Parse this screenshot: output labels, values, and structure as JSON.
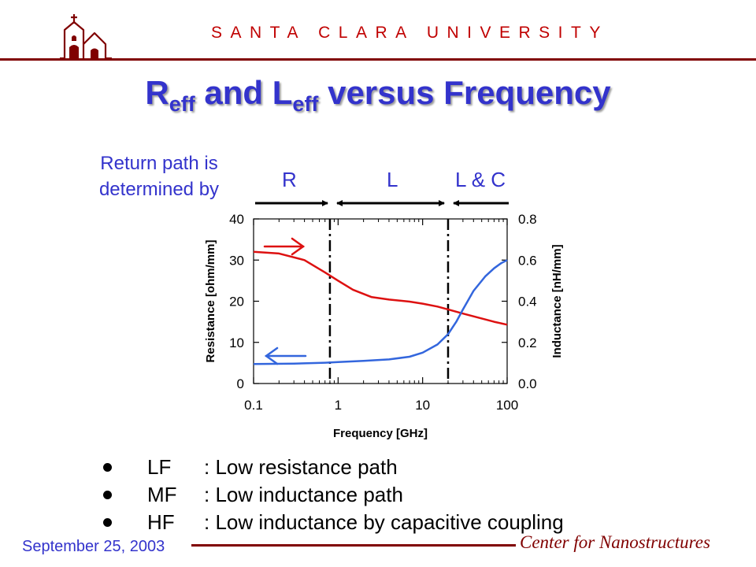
{
  "header": {
    "university": "SANTA CLARA UNIVERSITY"
  },
  "title": {
    "r": "R",
    "r_sub": "eff",
    "mid": " and L",
    "l_sub": "eff",
    "rest": " versus Frequency"
  },
  "annotation": {
    "line1": "Return path is",
    "line2": "determined by"
  },
  "regions": {
    "r": "R",
    "l": "L",
    "lc": "L & C"
  },
  "chart_data": {
    "type": "line",
    "x_scale": "log",
    "xlim": [
      0.1,
      100
    ],
    "xticks": [
      "0.1",
      "1",
      "10",
      "100"
    ],
    "xlabel": "Frequency [GHz]",
    "y_left": {
      "label": "Resistance [ohm/mm]",
      "lim": [
        0,
        40
      ],
      "ticks": [
        "0",
        "10",
        "20",
        "30",
        "40"
      ]
    },
    "y_right": {
      "label": "Inductance [nH/mm]",
      "lim": [
        0,
        0.8
      ],
      "ticks": [
        "0.0",
        "0.2",
        "0.4",
        "0.6",
        "0.8"
      ]
    },
    "vlines": [
      0.8,
      20
    ],
    "series": [
      {
        "axis": "left",
        "color": "#dd1111",
        "x": [
          0.1,
          0.2,
          0.4,
          0.7,
          1,
          1.5,
          2.5,
          4,
          7,
          10,
          15,
          20,
          30,
          50,
          70,
          100
        ],
        "y": [
          32,
          31.6,
          30,
          27,
          25,
          22.8,
          21,
          20.4,
          19.9,
          19.4,
          18.7,
          18,
          17,
          15.8,
          15,
          14.3
        ]
      },
      {
        "axis": "right",
        "color": "#3366dd",
        "x": [
          0.1,
          0.3,
          0.7,
          1,
          2,
          4,
          7,
          10,
          15,
          20,
          25,
          30,
          40,
          55,
          70,
          85,
          100
        ],
        "y": [
          0.095,
          0.097,
          0.101,
          0.104,
          0.11,
          0.117,
          0.13,
          0.15,
          0.19,
          0.24,
          0.3,
          0.36,
          0.45,
          0.52,
          0.56,
          0.585,
          0.6
        ]
      }
    ]
  },
  "bullets": [
    {
      "band": "LF",
      "text": ": Low resistance path"
    },
    {
      "band": "MF",
      "text": ": Low inductance path"
    },
    {
      "band": "HF",
      "text": ": Low inductance by capacitive coupling"
    }
  ],
  "footer": {
    "date": "September 25, 2003",
    "center": "Center for Nanostructures"
  },
  "colors": {
    "maroon": "#800000",
    "red_header": "#c00000",
    "blue_text": "#3333cc",
    "resistance": "#dd1111",
    "inductance": "#3366dd"
  }
}
